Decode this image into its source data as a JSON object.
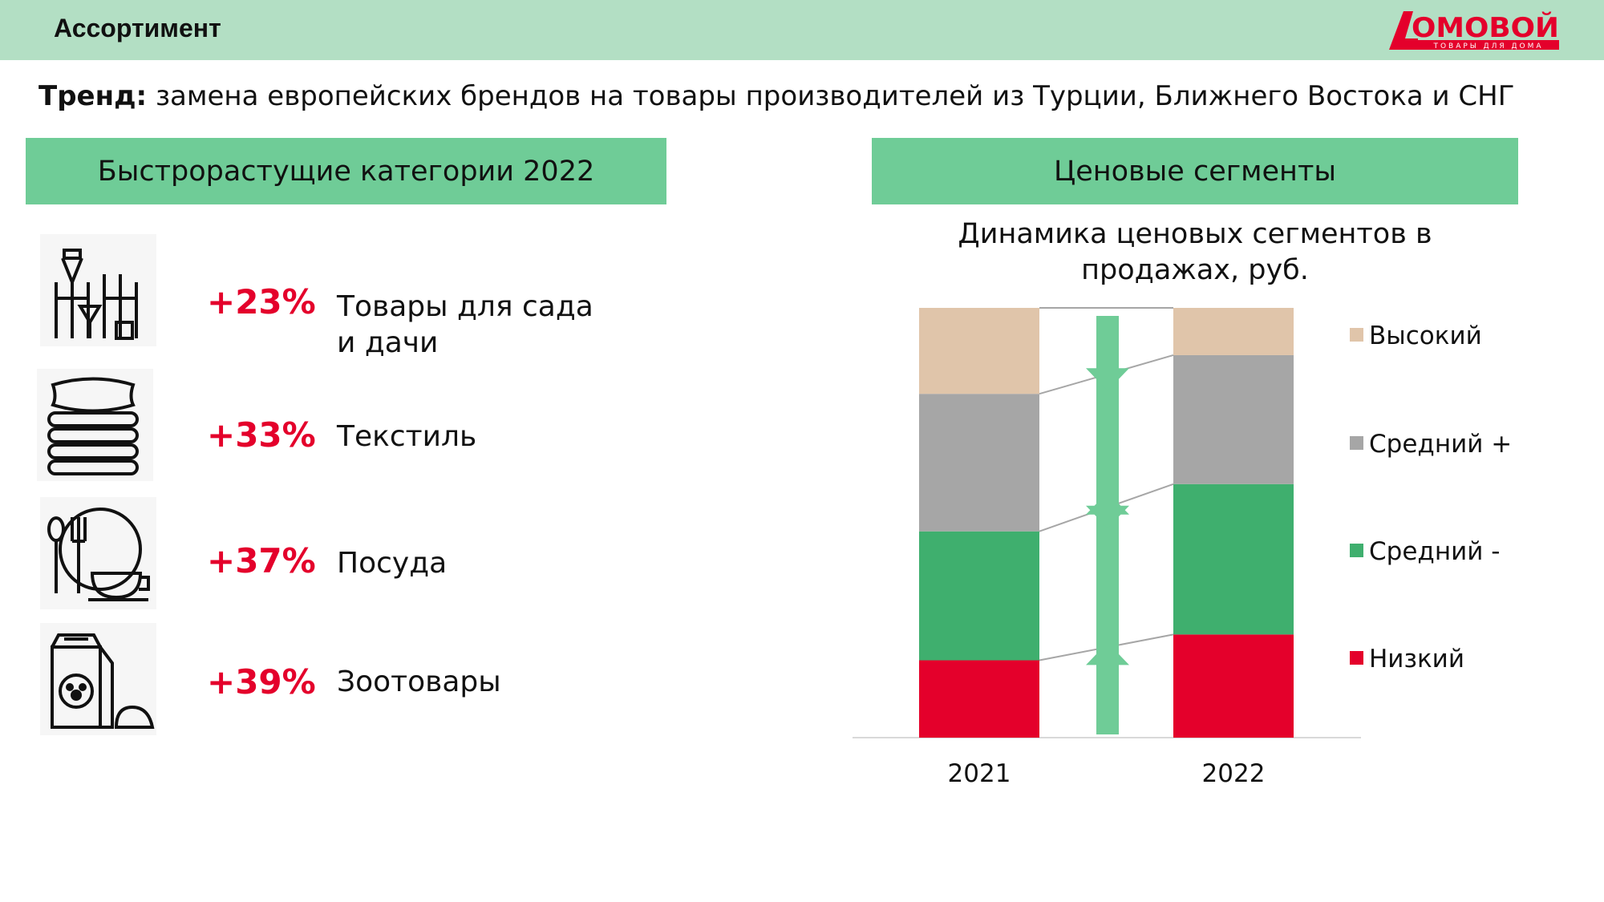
{
  "header": {
    "title": "Ассортимент",
    "logo_text": "ДОМОВОЙ",
    "logo_subtext": "ТОВАРЫ ДЛЯ ДОМА"
  },
  "trend": {
    "label": "Тренд:",
    "text": " замена европейских брендов на товары производителей из Турции, Ближнего Востока и СНГ"
  },
  "left": {
    "title": "Быстрорастущие категории 2022",
    "items": [
      {
        "icon": "garden-tools-icon",
        "pct": "+23%",
        "label": "Товары для сада",
        "label2": "и дачи"
      },
      {
        "icon": "textile-stack-icon",
        "pct": "+33%",
        "label": "Текстиль"
      },
      {
        "icon": "tableware-icon",
        "pct": "+37%",
        "label": "Посуда"
      },
      {
        "icon": "pet-food-icon",
        "pct": "+39%",
        "label": "Зоотовары"
      }
    ]
  },
  "right": {
    "title": "Ценовые сегменты"
  },
  "chart_data": {
    "type": "bar",
    "stacked": true,
    "percent": true,
    "title": "Динамика ценовых сегментов в продажах, руб.",
    "title_line1": "Динамика ценовых сегментов в",
    "title_line2": "продажах, руб.",
    "categories": [
      "2021",
      "2022"
    ],
    "series": [
      {
        "name": "Низкий",
        "color": "#e4002b",
        "values": [
          18,
          24
        ]
      },
      {
        "name": "Средний -",
        "color": "#3faf6e",
        "values": [
          30,
          35
        ]
      },
      {
        "name": "Средний +",
        "color": "#a6a6a6",
        "values": [
          32,
          30
        ]
      },
      {
        "name": "Высокий",
        "color": "#e0c5aa",
        "values": [
          20,
          11
        ]
      }
    ],
    "trend_arrows": [
      "down",
      "down",
      "up",
      "up"
    ],
    "arrow_color": "#6fcc97",
    "legend_position": "right",
    "grid": false,
    "ylim": [
      0,
      100
    ]
  }
}
